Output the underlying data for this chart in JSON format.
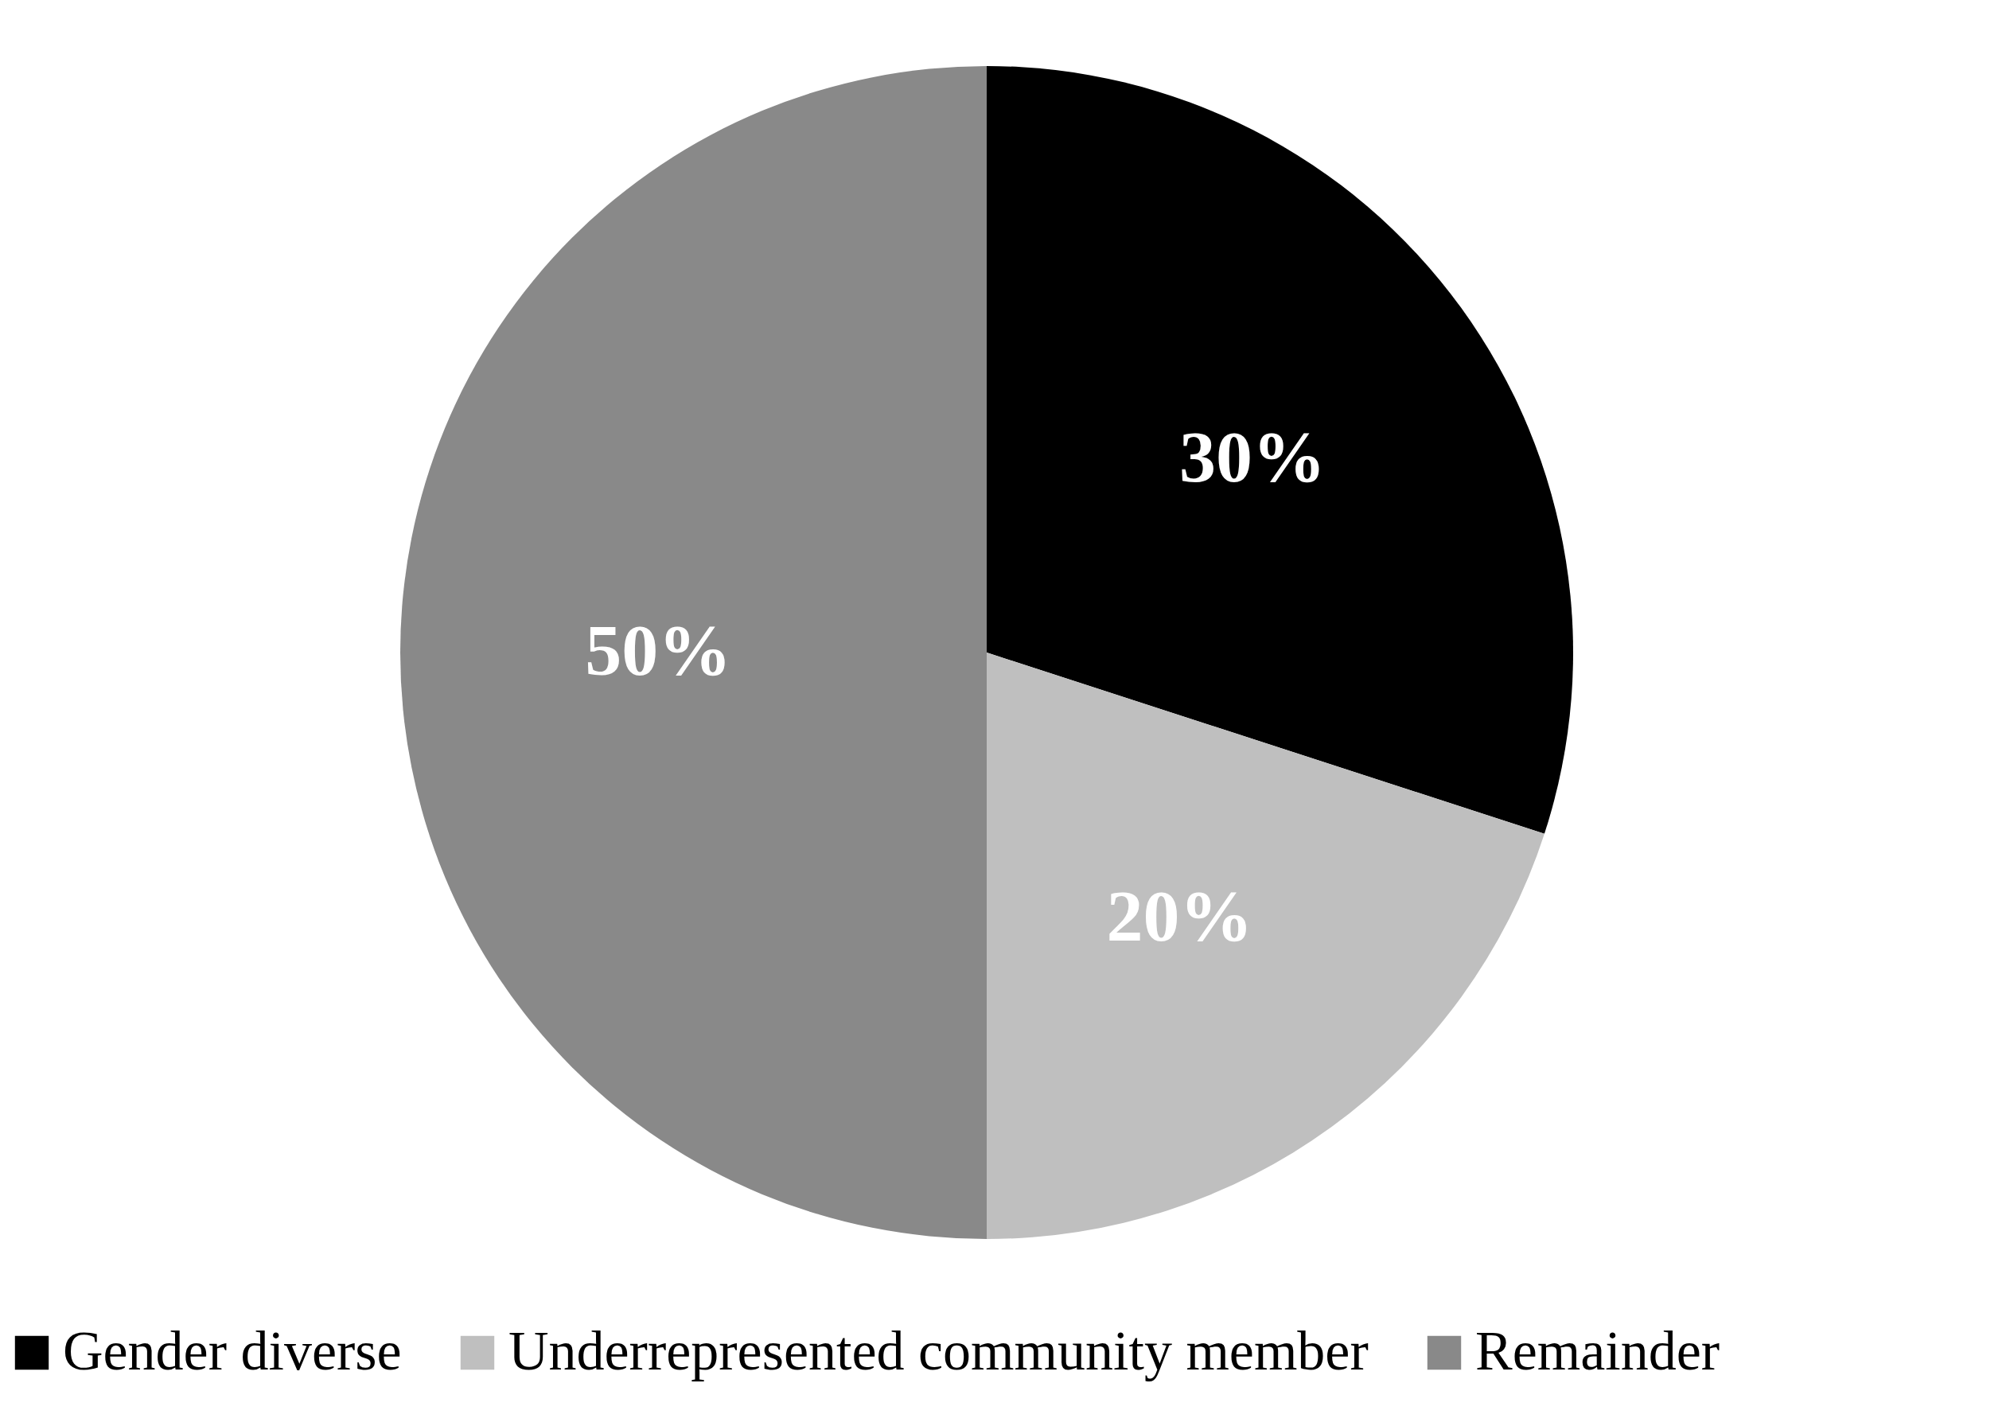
{
  "chart_data": {
    "type": "pie",
    "categories": [
      "Gender diverse",
      "Underrepresented community member",
      "Remainder"
    ],
    "values": [
      30,
      20,
      50
    ],
    "colors": [
      "#000000",
      "#bfbfbf",
      "#898989"
    ],
    "value_labels": [
      "30%",
      "20%",
      "50%"
    ],
    "legend": "bottom"
  }
}
